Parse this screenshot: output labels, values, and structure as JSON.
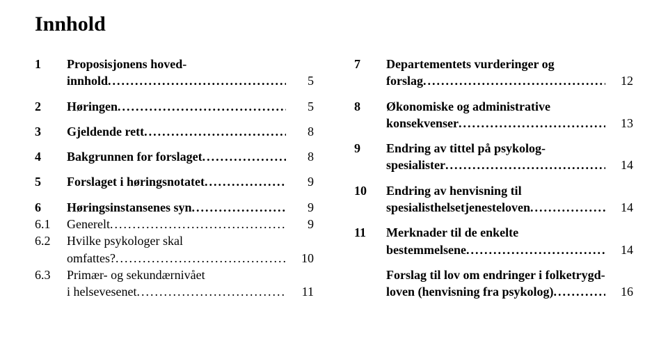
{
  "title": "Innhold",
  "left": [
    {
      "num": "1",
      "label_lines": [
        "Proposisjonens hoved-",
        "innhold"
      ],
      "page": "5",
      "bold": true,
      "sub": false
    },
    {
      "gap": true
    },
    {
      "num": "2",
      "label_lines": [
        "Høringen"
      ],
      "page": "5",
      "bold": true,
      "sub": false
    },
    {
      "gap": true
    },
    {
      "num": "3",
      "label_lines": [
        "Gjeldende rett"
      ],
      "page": "8",
      "bold": true,
      "sub": false
    },
    {
      "gap": true
    },
    {
      "num": "4",
      "label_lines": [
        "Bakgrunnen for forslaget"
      ],
      "page": "8",
      "bold": true,
      "sub": false
    },
    {
      "gap": true
    },
    {
      "num": "5",
      "label_lines": [
        "Forslaget i høringsnotatet"
      ],
      "page": "9",
      "bold": true,
      "sub": false
    },
    {
      "gap": true
    },
    {
      "num": "6",
      "label_lines": [
        "Høringsinstansenes syn"
      ],
      "page": "9",
      "bold": true,
      "sub": false
    },
    {
      "num": "6.1",
      "label_lines": [
        "Generelt"
      ],
      "page": "9",
      "bold": false,
      "sub": true
    },
    {
      "num": "6.2",
      "label_lines": [
        "Hvilke psykologer skal",
        "omfattes?"
      ],
      "page": "10",
      "bold": false,
      "sub": true
    },
    {
      "num": "6.3",
      "label_lines": [
        "Primær- og sekundærnivået",
        "i helsevesenet"
      ],
      "page": "11",
      "bold": false,
      "sub": true
    }
  ],
  "right": [
    {
      "num": "7",
      "label_lines": [
        "Departementets vurderinger og",
        "forslag"
      ],
      "page": "12",
      "bold": true,
      "sub": false
    },
    {
      "gap": true
    },
    {
      "num": "8",
      "label_lines": [
        "Økonomiske og administrative",
        "konsekvenser"
      ],
      "page": "13",
      "bold": true,
      "sub": false
    },
    {
      "gap": true
    },
    {
      "num": "9",
      "label_lines": [
        "Endring av tittel på psykolog-",
        "spesialister"
      ],
      "page": "14",
      "bold": true,
      "sub": false
    },
    {
      "gap": true
    },
    {
      "num": "10",
      "label_lines": [
        "Endring av henvisning til",
        "spesialisthelsetjenesteloven"
      ],
      "page": "14",
      "bold": true,
      "sub": false
    },
    {
      "gap": true
    },
    {
      "num": "11",
      "label_lines": [
        "Merknader til de enkelte",
        "bestemmelsene"
      ],
      "page": "14",
      "bold": true,
      "sub": false
    },
    {
      "gap": true
    },
    {
      "num": "",
      "label_lines": [
        "Forslag til lov om endringer i folketrygd-",
        "loven (henvisning fra psykolog)"
      ],
      "page": "16",
      "bold": true,
      "sub": false
    }
  ]
}
